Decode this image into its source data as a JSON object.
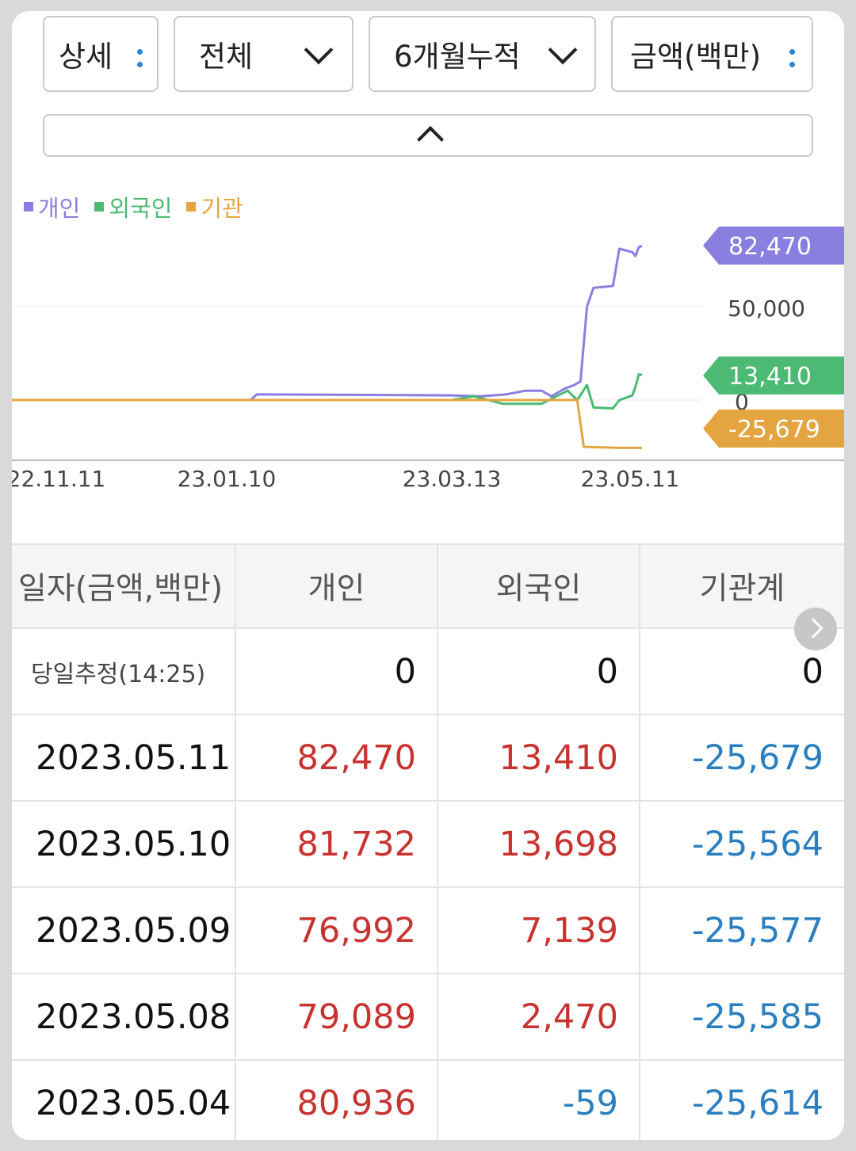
{
  "controls": {
    "detail": "상세",
    "scope": "전체",
    "period": "6개월누적",
    "unit": "금액(백만)"
  },
  "chart_data": {
    "type": "line",
    "legend": [
      "개인",
      "외국인",
      "기관"
    ],
    "x_ticks": [
      "22.11.11",
      "23.01.10",
      "23.03.13",
      "23.05.11"
    ],
    "y_ticks": [
      0,
      50000
    ],
    "y_tick_labels": [
      "0",
      "50,000"
    ],
    "end_labels": [
      {
        "series": "개인",
        "text": "82,470",
        "color": "#8a7fe0"
      },
      {
        "series": "외국인",
        "text": "13,410",
        "color": "#4cba72"
      },
      {
        "series": "기관",
        "text": "-25,679",
        "color": "#e4a540"
      }
    ],
    "colors": {
      "개인": "#8a7fe0",
      "외국인": "#4cba72",
      "기관": "#e4a540"
    },
    "series": [
      {
        "name": "개인",
        "values": [
          [
            "22.11.11",
            0
          ],
          [
            "23.01.10",
            0
          ],
          [
            "23.01.12",
            3000
          ],
          [
            "23.03.13",
            2500
          ],
          [
            "23.03.22",
            2000
          ],
          [
            "23.03.30",
            3000
          ],
          [
            "23.04.05",
            5000
          ],
          [
            "23.04.10",
            5000
          ],
          [
            "23.04.13",
            2000
          ],
          [
            "23.04.17",
            6000
          ],
          [
            "23.04.20",
            8000
          ],
          [
            "23.04.22",
            10000
          ],
          [
            "23.04.24",
            50000
          ],
          [
            "23.04.26",
            60000
          ],
          [
            "23.05.02",
            61000
          ],
          [
            "23.05.04",
            80936
          ],
          [
            "23.05.08",
            79089
          ],
          [
            "23.05.09",
            76992
          ],
          [
            "23.05.10",
            81732
          ],
          [
            "23.05.11",
            82470
          ]
        ]
      },
      {
        "name": "외국인",
        "values": [
          [
            "22.11.11",
            0
          ],
          [
            "23.03.13",
            0
          ],
          [
            "23.03.20",
            2000
          ],
          [
            "23.03.29",
            -2000
          ],
          [
            "23.04.10",
            -2000
          ],
          [
            "23.04.18",
            5000
          ],
          [
            "23.04.21",
            0
          ],
          [
            "23.04.24",
            8000
          ],
          [
            "23.04.26",
            -4000
          ],
          [
            "23.05.02",
            -4500
          ],
          [
            "23.05.04",
            -59
          ],
          [
            "23.05.08",
            2470
          ],
          [
            "23.05.09",
            7139
          ],
          [
            "23.05.10",
            13698
          ],
          [
            "23.05.11",
            13410
          ]
        ]
      },
      {
        "name": "기관",
        "values": [
          [
            "22.11.11",
            0
          ],
          [
            "23.04.21",
            0
          ],
          [
            "23.04.23",
            -25000
          ],
          [
            "23.05.04",
            -25614
          ],
          [
            "23.05.08",
            -25585
          ],
          [
            "23.05.09",
            -25577
          ],
          [
            "23.05.10",
            -25564
          ],
          [
            "23.05.11",
            -25679
          ]
        ]
      }
    ]
  },
  "table": {
    "headers": [
      "일자(금액,백만)",
      "개인",
      "외국인",
      "기관계"
    ],
    "rows": [
      {
        "date": "당일추정(14:25)",
        "individual": "0",
        "foreign": "0",
        "institution": "0"
      },
      {
        "date": "2023.05.11",
        "individual": "82,470",
        "foreign": "13,410",
        "institution": "-25,679"
      },
      {
        "date": "2023.05.10",
        "individual": "81,732",
        "foreign": "13,698",
        "institution": "-25,564"
      },
      {
        "date": "2023.05.09",
        "individual": "76,992",
        "foreign": "7,139",
        "institution": "-25,577"
      },
      {
        "date": "2023.05.08",
        "individual": "79,089",
        "foreign": "2,470",
        "institution": "-25,585"
      },
      {
        "date": "2023.05.04",
        "individual": "80,936",
        "foreign": "-59",
        "institution": "-25,614"
      }
    ]
  }
}
